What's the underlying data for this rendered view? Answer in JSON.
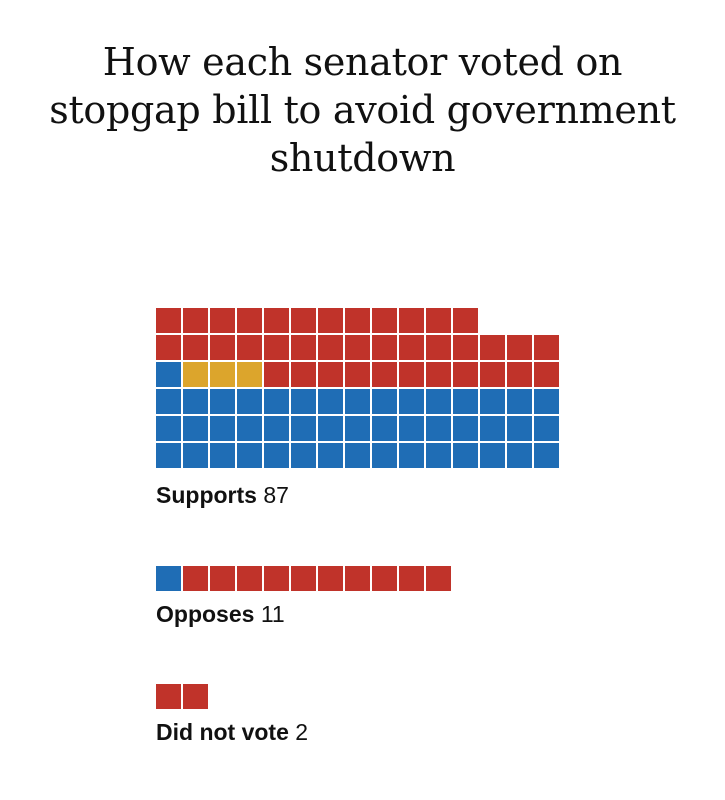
{
  "title_lines": [
    "How each senator voted on",
    "stopgap bill to avoid government",
    "shutdown"
  ],
  "colors": {
    "democrat": "#1f6db5",
    "republican": "#c0332a",
    "independent": "#dca52c"
  },
  "chart_data": {
    "type": "waffle",
    "title": "How each senator voted on stopgap bill to avoid government shutdown",
    "groups": [
      {
        "label": "Supports",
        "total": 87,
        "segments": [
          {
            "party": "democrat",
            "count": 46
          },
          {
            "party": "independent",
            "count": 3
          },
          {
            "party": "republican",
            "count": 38
          }
        ]
      },
      {
        "label": "Opposes",
        "total": 11,
        "segments": [
          {
            "party": "democrat",
            "count": 1
          },
          {
            "party": "republican",
            "count": 10
          }
        ]
      },
      {
        "label": "Did not vote",
        "total": 2,
        "segments": [
          {
            "party": "republican",
            "count": 2
          }
        ]
      }
    ]
  }
}
